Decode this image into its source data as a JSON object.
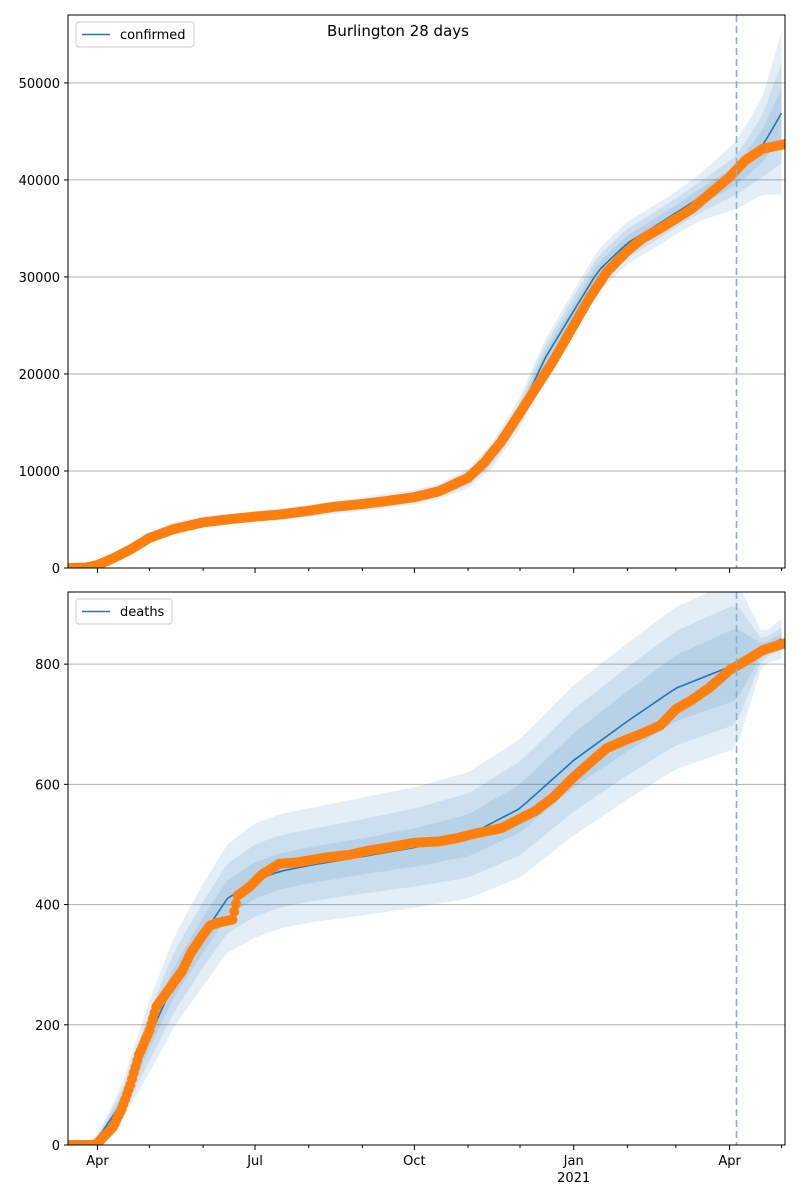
{
  "figure_title": "Burlington 28 days",
  "chart_data": [
    {
      "type": "line",
      "legend": [
        "confirmed"
      ],
      "legend_position": "top-left",
      "grid": "y",
      "ylim": [
        0,
        57000
      ],
      "yticks": [
        0,
        10000,
        20000,
        30000,
        40000,
        50000
      ],
      "ytick_labels": [
        "0",
        "10000",
        "20000",
        "30000",
        "40000",
        "50000"
      ],
      "vline_date": "2021-04-05",
      "model": {
        "dates": [
          "2020-03-15",
          "2020-04-01",
          "2020-04-15",
          "2020-05-01",
          "2020-05-15",
          "2020-06-01",
          "2020-07-01",
          "2020-08-01",
          "2020-09-01",
          "2020-10-01",
          "2020-10-15",
          "2020-11-01",
          "2020-11-15",
          "2020-12-01",
          "2020-12-15",
          "2021-01-01",
          "2021-01-15",
          "2021-02-01",
          "2021-02-15",
          "2021-03-01",
          "2021-03-15",
          "2021-04-05",
          "2021-04-20",
          "2021-05-03"
        ],
        "mean": [
          0,
          300,
          1900,
          3300,
          4300,
          4800,
          5300,
          5900,
          6600,
          7300,
          7900,
          9200,
          11600,
          16000,
          21500,
          26500,
          30600,
          33500,
          35000,
          36600,
          38200,
          40500,
          43500,
          47500
        ],
        "band_50_halfwidth": [
          0,
          0,
          0,
          100,
          150,
          200,
          250,
          250,
          300,
          300,
          350,
          400,
          500,
          600,
          700,
          800,
          800,
          800,
          800,
          800,
          900,
          1000,
          1700,
          2700
        ],
        "band_80_halfwidth": [
          0,
          0,
          0,
          200,
          300,
          350,
          400,
          450,
          500,
          550,
          600,
          700,
          900,
          1100,
          1300,
          1500,
          1500,
          1500,
          1500,
          1500,
          1600,
          2000,
          3200,
          5500
        ],
        "band_95_halfwidth": [
          0,
          0,
          0,
          300,
          450,
          500,
          550,
          600,
          700,
          750,
          800,
          1000,
          1300,
          1600,
          1900,
          2100,
          2200,
          2200,
          2200,
          2200,
          2400,
          3500,
          5000,
          9000
        ]
      },
      "observed": {
        "dates": [
          "2020-03-15",
          "2020-03-25",
          "2020-04-01",
          "2020-04-10",
          "2020-04-20",
          "2020-05-01",
          "2020-05-15",
          "2020-06-01",
          "2020-06-15",
          "2020-07-01",
          "2020-07-15",
          "2020-08-01",
          "2020-08-15",
          "2020-09-01",
          "2020-09-15",
          "2020-10-01",
          "2020-10-15",
          "2020-11-01",
          "2020-11-10",
          "2020-11-20",
          "2020-12-01",
          "2020-12-10",
          "2020-12-20",
          "2021-01-01",
          "2021-01-10",
          "2021-01-20",
          "2021-02-01",
          "2021-02-10",
          "2021-02-20",
          "2021-03-01",
          "2021-03-10",
          "2021-03-20",
          "2021-04-01",
          "2021-04-10",
          "2021-04-20",
          "2021-05-03"
        ],
        "values": [
          0,
          50,
          300,
          1000,
          1900,
          3100,
          4000,
          4700,
          5000,
          5300,
          5500,
          5900,
          6300,
          6600,
          6900,
          7300,
          7900,
          9300,
          10800,
          13000,
          16000,
          18500,
          21300,
          25000,
          27800,
          30500,
          32700,
          34000,
          35000,
          36000,
          37000,
          38500,
          40300,
          42000,
          43200,
          43700
        ]
      }
    },
    {
      "type": "line",
      "legend": [
        "deaths"
      ],
      "legend_position": "top-left",
      "grid": "y",
      "ylim": [
        0,
        920
      ],
      "yticks": [
        0,
        200,
        400,
        600,
        800
      ],
      "ytick_labels": [
        "0",
        "200",
        "400",
        "600",
        "800"
      ],
      "xtick_labels": [
        {
          "date": "2020-04-01",
          "label": "Apr",
          "sub": ""
        },
        {
          "date": "2020-07-01",
          "label": "Jul",
          "sub": ""
        },
        {
          "date": "2020-10-01",
          "label": "Oct",
          "sub": ""
        },
        {
          "date": "2021-01-01",
          "label": "Jan",
          "sub": "2021"
        },
        {
          "date": "2021-04-01",
          "label": "Apr",
          "sub": ""
        }
      ],
      "vline_date": "2021-04-05",
      "model": {
        "dates": [
          "2020-03-15",
          "2020-03-25",
          "2020-04-01",
          "2020-04-15",
          "2020-05-01",
          "2020-05-15",
          "2020-06-01",
          "2020-06-15",
          "2020-07-01",
          "2020-07-15",
          "2020-08-01",
          "2020-09-01",
          "2020-10-01",
          "2020-11-01",
          "2020-12-01",
          "2021-01-01",
          "2021-02-01",
          "2021-03-01",
          "2021-04-05",
          "2021-04-20",
          "2021-05-03"
        ],
        "mean": [
          0,
          0,
          10,
          70,
          180,
          270,
          350,
          410,
          440,
          455,
          465,
          480,
          495,
          515,
          560,
          640,
          705,
          760,
          800,
          825,
          845
        ],
        "band_50_halfwidth": [
          0,
          0,
          2,
          10,
          20,
          25,
          30,
          30,
          30,
          30,
          30,
          30,
          32,
          35,
          40,
          45,
          50,
          55,
          60,
          8,
          10
        ],
        "band_80_halfwidth": [
          0,
          0,
          4,
          20,
          40,
          50,
          55,
          58,
          60,
          60,
          60,
          62,
          65,
          70,
          78,
          85,
          90,
          95,
          100,
          15,
          20
        ],
        "band_95_halfwidth": [
          0,
          0,
          6,
          30,
          60,
          75,
          85,
          90,
          95,
          95,
          95,
          98,
          100,
          105,
          115,
          125,
          130,
          135,
          140,
          25,
          35
        ]
      },
      "observed": {
        "dates": [
          "2020-03-15",
          "2020-03-31",
          "2020-04-05",
          "2020-04-10",
          "2020-04-15",
          "2020-04-20",
          "2020-04-25",
          "2020-05-01",
          "2020-05-05",
          "2020-05-10",
          "2020-05-15",
          "2020-05-20",
          "2020-05-25",
          "2020-06-01",
          "2020-06-05",
          "2020-06-10",
          "2020-06-18",
          "2020-06-21",
          "2020-06-28",
          "2020-07-05",
          "2020-07-15",
          "2020-07-25",
          "2020-08-10",
          "2020-08-25",
          "2020-09-05",
          "2020-09-20",
          "2020-10-01",
          "2020-10-15",
          "2020-10-25",
          "2020-11-05",
          "2020-11-20",
          "2020-12-01",
          "2020-12-10",
          "2020-12-20",
          "2021-01-01",
          "2021-01-10",
          "2021-01-20",
          "2021-02-01",
          "2021-02-10",
          "2021-02-20",
          "2021-03-01",
          "2021-03-10",
          "2021-03-20",
          "2021-04-01",
          "2021-04-10",
          "2021-04-20",
          "2021-05-03"
        ],
        "values": [
          0,
          0,
          15,
          30,
          60,
          100,
          150,
          190,
          230,
          250,
          270,
          290,
          320,
          350,
          365,
          370,
          375,
          415,
          430,
          450,
          468,
          470,
          478,
          483,
          490,
          497,
          503,
          505,
          510,
          518,
          527,
          543,
          556,
          578,
          612,
          635,
          660,
          675,
          685,
          698,
          725,
          740,
          760,
          790,
          805,
          823,
          835
        ]
      }
    }
  ],
  "colors": {
    "model_line": "#1f77b4",
    "band": "#1f77b4",
    "observed": "#ff7f0e",
    "vline": "#7fb2d9",
    "grid": "#b0b0b0"
  }
}
